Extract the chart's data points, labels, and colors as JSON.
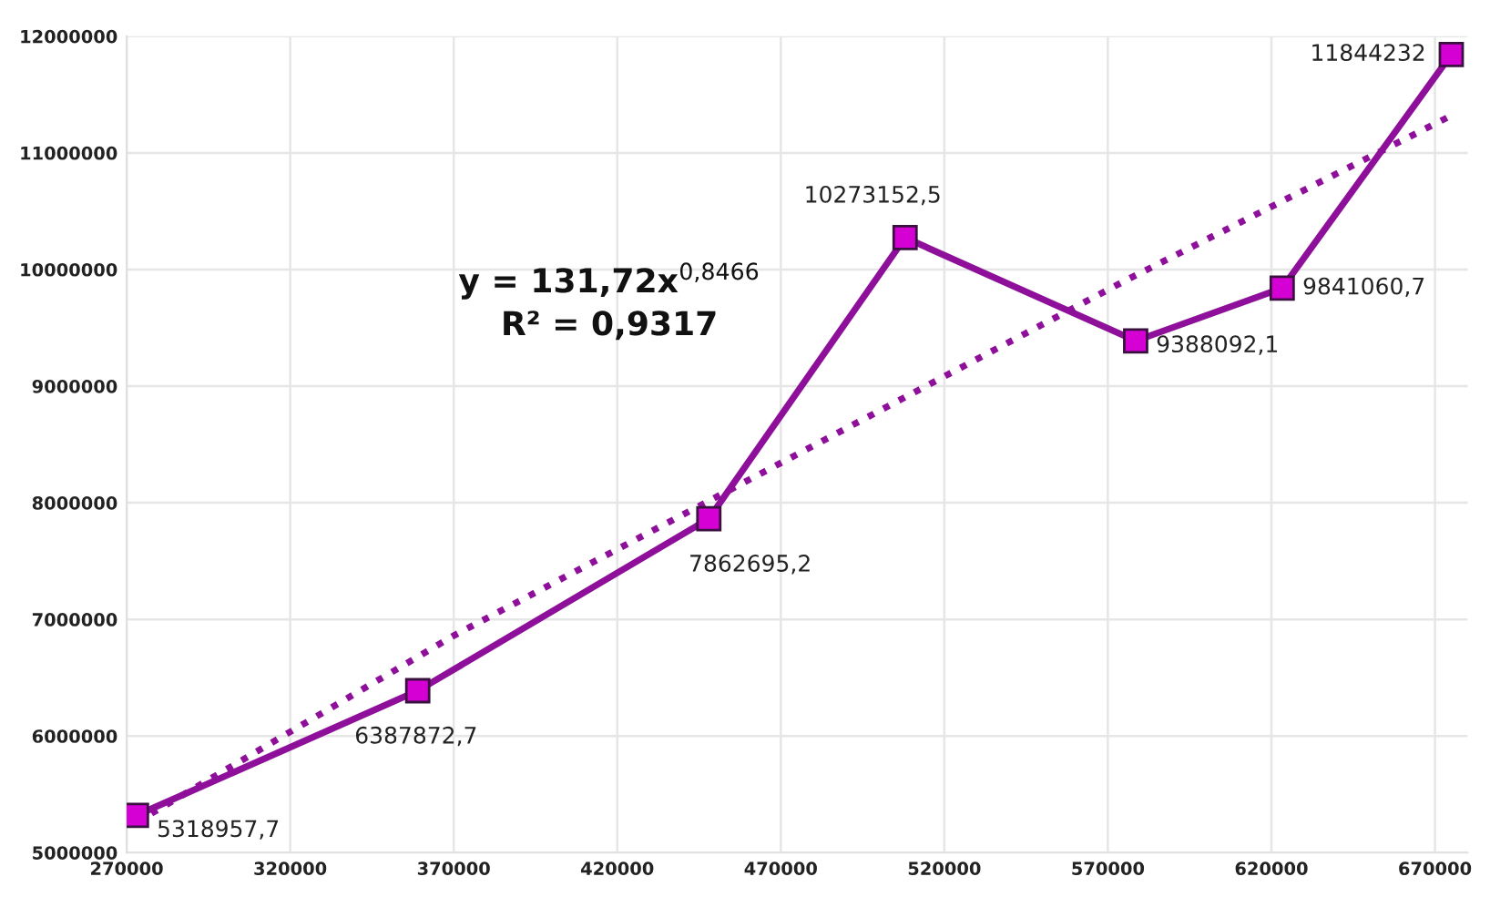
{
  "chart_data": {
    "type": "line",
    "x": [
      273000,
      359000,
      448000,
      508000,
      578500,
      623300,
      675000
    ],
    "series": [
      {
        "color": "#8e0f9a",
        "marker": "square",
        "line_style": "solid",
        "values": [
          5318957.7,
          6387872.7,
          7862695.2,
          10273152.5,
          9388092.1,
          9841060.7,
          11844232
        ],
        "value_labels": [
          "5318957,7",
          "6387872,7",
          "7862695,2",
          "10273152,5",
          "9388092,1",
          "9841060,7",
          "11844232"
        ]
      },
      {
        "color": "#8e0f9a",
        "marker": "none",
        "line_style": "dotted",
        "x": [
          273000,
          370000,
          474000,
          575000,
          675000
        ],
        "values": [
          5260000,
          6860000,
          8400000,
          9900000,
          11320000
        ]
      }
    ],
    "annotations": [
      "y = 131,72x$^{0,8466}$",
      "R² = 0,9317"
    ],
    "xlim": [
      270000,
      680000
    ],
    "xticks": [
      270000,
      320000,
      370000,
      420000,
      470000,
      520000,
      570000,
      620000,
      670000
    ],
    "ylim": [
      5000000,
      12000000
    ],
    "yticks": [
      5000000,
      6000000,
      7000000,
      8000000,
      9000000,
      10000000,
      11000000,
      12000000
    ],
    "grid": true,
    "legend": false
  }
}
